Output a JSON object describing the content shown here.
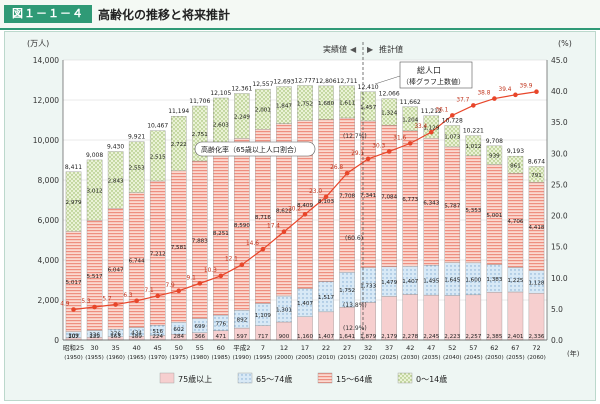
{
  "header": {
    "figure_label": "図１－１－４",
    "title": "高齢化の推移と将来推計"
  },
  "colors": {
    "brand": "#2f9a76",
    "age75": "#f6cfcf",
    "age65": "#cfe3f3",
    "age15": "#f4b3a6",
    "age0": "#e3eecb",
    "line": "#e8462a"
  },
  "chart_data": {
    "type": "bar",
    "stacked": true,
    "title": "高齢化の推移と将来推計",
    "ylabel_left": "(万人)",
    "ylabel_right": "(%)",
    "xlabel": "(年)",
    "ylim_left": [
      0,
      14000
    ],
    "ylim_right": [
      0,
      45
    ],
    "yticks_left": [
      "0",
      "2,000",
      "4,000",
      "6,000",
      "8,000",
      "10,000",
      "12,000",
      "14,000"
    ],
    "yticks_right": [
      "0.0",
      "5.0",
      "10.0",
      "15.0",
      "20.0",
      "25.0",
      "30.0",
      "35.0",
      "40.0",
      "45.0"
    ],
    "categories": [
      "1950",
      "1955",
      "1960",
      "1965",
      "1970",
      "1975",
      "1980",
      "1985",
      "1990",
      "1995",
      "2000",
      "2005",
      "2010",
      "2015",
      "2020",
      "2025",
      "2030",
      "2035",
      "2040",
      "2045",
      "2050",
      "2055",
      "2060"
    ],
    "x_labels_era": [
      "昭和25",
      "30",
      "35",
      "40",
      "45",
      "50",
      "55",
      "60",
      "平成2",
      "7",
      "12",
      "17",
      "22",
      "27",
      "32",
      "37",
      "42",
      "47",
      "52",
      "57",
      "62",
      "67",
      "72"
    ],
    "x_labels_year": [
      "(1950)",
      "(1955)",
      "(1960)",
      "(1965)",
      "(1970)",
      "(1975)",
      "(1980)",
      "(1985)",
      "(1990)",
      "(1995)",
      "(2000)",
      "(2005)",
      "(2010)",
      "(2015)",
      "(2020)",
      "(2025)",
      "(2030)",
      "(2035)",
      "(2040)",
      "(2045)",
      "(2050)",
      "(2055)",
      "(2060)"
    ],
    "series": [
      {
        "name": "75歳以上",
        "color": "#f6cfcf",
        "values": [
          107,
          139,
          163,
          189,
          224,
          284,
          366,
          471,
          597,
          717,
          900,
          1160,
          1407,
          1641,
          1879,
          2179,
          2278,
          2245,
          2223,
          2257,
          2385,
          2401,
          2336
        ],
        "labels": [
          "107",
          "139",
          "163",
          "189",
          "224",
          "284",
          "366",
          "471",
          "597",
          "717",
          "900",
          "1,160",
          "1,407",
          "1,641",
          "1,879",
          "2,179",
          "2,278",
          "2,245",
          "2,223",
          "2,257",
          "2,385",
          "2,401",
          "2,336"
        ]
      },
      {
        "name": "65～74歳",
        "color": "#cfe3f3",
        "values": [
          309,
          336,
          376,
          434,
          516,
          602,
          699,
          776,
          892,
          1109,
          1301,
          1407,
          1517,
          1752,
          1733,
          1479,
          1407,
          1495,
          1645,
          1600,
          1383,
          1225,
          1128
        ],
        "labels": [
          "309",
          "336",
          "376",
          "434",
          "516",
          "602",
          "699",
          "776",
          "892",
          "1,109",
          "1,301",
          "1,407",
          "1,517",
          "1,752",
          "1,733",
          "1,479",
          "1,407",
          "1,495",
          "1,645",
          "1,600",
          "1,383",
          "1,225",
          "1,128"
        ]
      },
      {
        "name": "15～64歳",
        "color": "#f4b3a6",
        "values": [
          5017,
          5517,
          6047,
          6744,
          7212,
          7581,
          7883,
          8251,
          8590,
          8716,
          8622,
          8409,
          8103,
          7708,
          7341,
          7084,
          6773,
          6343,
          5787,
          5353,
          5001,
          4706,
          4418
        ],
        "labels": [
          "5,017",
          "5,517",
          "6,047",
          "6,744",
          "7,212",
          "7,581",
          "7,883",
          "8,251",
          "8,590",
          "8,716",
          "8,622",
          "8,409",
          "8,103",
          "7,708",
          "7,341",
          "7,084",
          "6,773",
          "6,343",
          "5,787",
          "5,353",
          "5,001",
          "4,706",
          "4,418"
        ]
      },
      {
        "name": "0～14歳",
        "color": "#e3eecb",
        "values": [
          2979,
          3012,
          2843,
          2553,
          2515,
          2722,
          2751,
          2603,
          2249,
          2001,
          1847,
          1752,
          1680,
          1611,
          1457,
          1324,
          1204,
          1129,
          1073,
          1012,
          939,
          861,
          791
        ],
        "labels": [
          "2,979",
          "3,012",
          "2,843",
          "2,553",
          "2,515",
          "2,722",
          "2,751",
          "2,603",
          "2,249",
          "2,001",
          "1,847",
          "1,752",
          "1,680",
          "1,611",
          "1,457",
          "1,324",
          "1,204",
          "1,129",
          "1,073",
          "1,012",
          "939",
          "861",
          "791"
        ]
      }
    ],
    "totals": [
      8411,
      9008,
      9430,
      9921,
      10467,
      11194,
      11706,
      12105,
      12361,
      12557,
      12693,
      12777,
      12806,
      12711,
      12410,
      12066,
      11662,
      11212,
      10728,
      10221,
      9708,
      9193,
      8674
    ],
    "totals_labels": [
      "8,411",
      "9,008",
      "9,430",
      "9,921",
      "10,467",
      "11,194",
      "11,706",
      "12,105",
      "12,361",
      "12,557",
      "12,693",
      "12,777",
      "12,806",
      "12,711",
      "12,410",
      "12,066",
      "11,662",
      "11,212",
      "10,728",
      "10,221",
      "9,708",
      "9,193",
      "8,674"
    ],
    "aging_rate": {
      "name": "高齢化率（65歳以上人口割合）",
      "values": [
        4.9,
        5.3,
        5.7,
        6.3,
        7.1,
        7.9,
        9.1,
        10.3,
        12.1,
        14.6,
        17.4,
        20.2,
        23.0,
        26.8,
        29.1,
        30.3,
        31.6,
        33.4,
        36.1,
        37.7,
        38.8,
        39.4,
        39.9
      ],
      "labels": [
        "4.9",
        "5.3",
        "5.7",
        "6.3",
        "7.1",
        "7.9",
        "9.1",
        "10.3",
        "12.1",
        "14.6",
        "17.4",
        "20.2",
        "23.0",
        "26.8",
        "29.1",
        "30.3",
        "31.6",
        "33.4",
        "36.1",
        "37.7",
        "38.8",
        "39.4",
        "39.9"
      ]
    },
    "annotations": {
      "actual": "実績値",
      "projected": "推計値",
      "total_note_line1": "総人口",
      "total_note_line2": "（棒グラフ上数値）",
      "line_note": "高齢化率（65歳以上人口割合）",
      "paren_2015": [
        "(12.7%)",
        "(60.6)",
        "(13.8%)",
        "(12.9%)"
      ]
    },
    "legend": [
      "75歳以上",
      "65～74歳",
      "15～64歳",
      "0～14歳"
    ],
    "legend_position": "bottom"
  }
}
